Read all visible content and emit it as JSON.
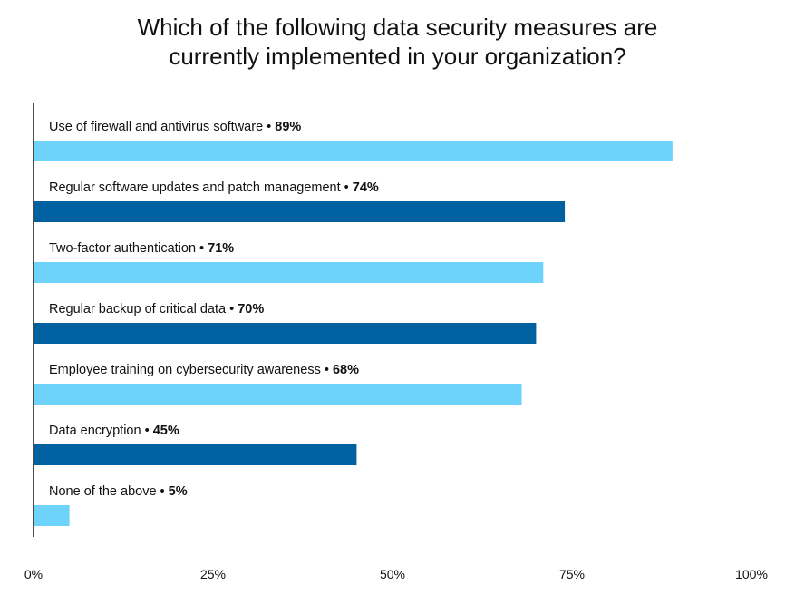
{
  "chart_data": {
    "type": "bar",
    "orientation": "horizontal",
    "title_lines": [
      "Which of the following data security measures are",
      "currently implemented in your organization?"
    ],
    "categories": [
      "Use of firewall and antivirus software",
      "Regular software updates and patch management",
      "Two-factor authentication",
      "Regular backup of critical data",
      "Employee training on cybersecurity awareness",
      "Data encryption",
      "None of the above"
    ],
    "values": [
      89,
      74,
      71,
      70,
      68,
      45,
      5
    ],
    "value_labels": [
      "89%",
      "74%",
      "71%",
      "70%",
      "68%",
      "45%",
      "5%"
    ],
    "separator": "•",
    "bar_colors": [
      "#6dd3fb",
      "#0060a0",
      "#6dd3fb",
      "#0060a0",
      "#6dd3fb",
      "#0060a0",
      "#6dd3fb"
    ],
    "xlim": [
      0,
      100
    ],
    "xticks": [
      0,
      25,
      50,
      75,
      100
    ],
    "xtick_labels": [
      "0%",
      "25%",
      "50%",
      "75%",
      "100%"
    ],
    "grid": false,
    "legend": "none"
  }
}
